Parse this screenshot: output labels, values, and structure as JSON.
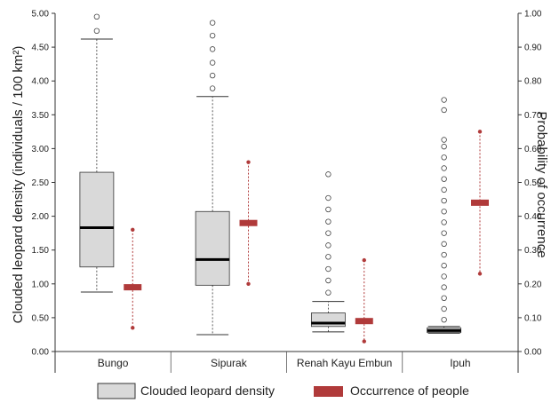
{
  "chart_data": {
    "type": "boxplot",
    "categories": [
      "Bungo",
      "Sipurak",
      "Renah Kayu Embun",
      "Ipuh"
    ],
    "ylabel": "Clouded leopard density (individuals / 100 km²)",
    "y2label": "Probability of occurrence",
    "ylim": [
      0,
      5
    ],
    "y2lim": [
      0,
      1
    ],
    "yticks": [
      "0.00",
      "0.50",
      "1.00",
      "1.50",
      "2.00",
      "2.50",
      "3.00",
      "3.50",
      "4.00",
      "4.50",
      "5.00"
    ],
    "y2ticks": [
      "0.00",
      "0.10",
      "0.20",
      "0.30",
      "0.40",
      "0.50",
      "0.60",
      "0.70",
      "0.80",
      "0.90",
      "1.00"
    ],
    "legend": {
      "placement": "bottom",
      "items": [
        {
          "label": "Clouded leopard density",
          "color": "#d9d9d9"
        },
        {
          "label": "Occurrence of people",
          "color": "#b03a3a"
        }
      ]
    },
    "density": [
      {
        "category": "Bungo",
        "whisker_low": 0.88,
        "q1": 1.25,
        "median": 1.83,
        "q3": 2.65,
        "whisker_high": 4.62,
        "outliers": [
          4.74,
          4.95
        ]
      },
      {
        "category": "Sipurak",
        "whisker_low": 0.25,
        "q1": 0.98,
        "median": 1.36,
        "q3": 2.07,
        "whisker_high": 3.77,
        "outliers": [
          3.89,
          4.08,
          4.27,
          4.47,
          4.67,
          4.86
        ]
      },
      {
        "category": "Renah Kayu Embun",
        "whisker_low": 0.29,
        "q1": 0.37,
        "median": 0.42,
        "q3": 0.57,
        "whisker_high": 0.74,
        "outliers": [
          0.87,
          1.05,
          1.22,
          1.4,
          1.57,
          1.75,
          1.92,
          2.1,
          2.27,
          2.62
        ]
      },
      {
        "category": "Ipuh",
        "whisker_low": 0.27,
        "q1": 0.28,
        "median": 0.31,
        "q3": 0.35,
        "whisker_high": 0.37,
        "outliers": [
          0.47,
          0.63,
          0.79,
          0.95,
          1.11,
          1.27,
          1.43,
          1.59,
          1.75,
          1.91,
          2.07,
          2.23,
          2.39,
          2.55,
          2.71,
          2.87,
          3.03,
          3.13,
          3.57,
          3.72
        ]
      }
    ],
    "occurrence": [
      {
        "category": "Bungo",
        "low": 0.07,
        "mean": 0.19,
        "high": 0.36
      },
      {
        "category": "Sipurak",
        "low": 0.2,
        "mean": 0.38,
        "high": 0.56
      },
      {
        "category": "Renah Kayu Embun",
        "low": 0.03,
        "mean": 0.09,
        "high": 0.27
      },
      {
        "category": "Ipuh",
        "low": 0.23,
        "mean": 0.44,
        "high": 0.65
      }
    ]
  }
}
